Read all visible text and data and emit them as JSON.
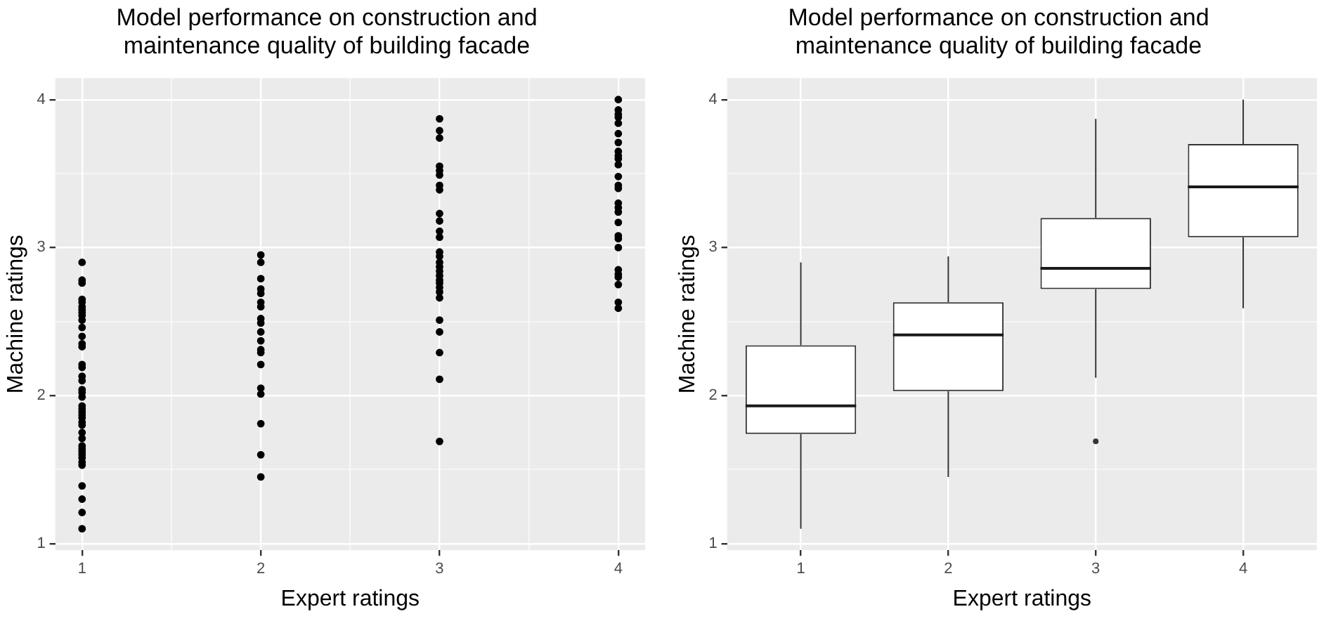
{
  "chart_data": [
    {
      "type": "scatter",
      "title": "Model performance on construction and maintenance quality of building facade",
      "xlabel": "Expert ratings",
      "ylabel": "Machine ratings",
      "xlim": [
        0.85,
        4.15
      ],
      "ylim": [
        0.955,
        4.145
      ],
      "xticks": [
        1,
        {
          "value": 1.5,
          "label": null
        },
        2,
        {
          "value": 2.5,
          "label": null
        },
        3,
        {
          "value": 3.5,
          "label": null
        },
        4
      ],
      "yticks": [
        1,
        {
          "value": 1.5,
          "label": null
        },
        2,
        {
          "value": 2.5,
          "label": null
        },
        3,
        {
          "value": 3.5,
          "label": null
        },
        4
      ],
      "grid": true,
      "marker": "circle",
      "series": [
        {
          "color": "#000000",
          "x": [
            1,
            1,
            1,
            1,
            1,
            1,
            1,
            1,
            1,
            1,
            1,
            1,
            1,
            1,
            1,
            1,
            1,
            1,
            1,
            1,
            1,
            1,
            1,
            1,
            1,
            1,
            1,
            1,
            1,
            1,
            1,
            1,
            1,
            1,
            1,
            1,
            1,
            1,
            1,
            1,
            1,
            2,
            2,
            2,
            2,
            2,
            2,
            2,
            2,
            2,
            2,
            2,
            2,
            2,
            2,
            2,
            2,
            2,
            2,
            2,
            3,
            3,
            3,
            3,
            3,
            3,
            3,
            3,
            3,
            3,
            3,
            3,
            3,
            3,
            3,
            3,
            3,
            3,
            3,
            3,
            3,
            3,
            3,
            3,
            3,
            3,
            3,
            3,
            4,
            4,
            4,
            4,
            4,
            4,
            4,
            4,
            4,
            4,
            4,
            4,
            4,
            4,
            4,
            4,
            4,
            4,
            4,
            4,
            4,
            4,
            4,
            4,
            4,
            4,
            4
          ],
          "values": [
            2.9,
            2.78,
            2.76,
            2.65,
            2.63,
            2.6,
            2.58,
            2.56,
            2.54,
            2.51,
            2.46,
            2.4,
            2.35,
            2.33,
            2.21,
            2.19,
            2.13,
            2.1,
            2.04,
            2.02,
            1.99,
            1.93,
            1.91,
            1.89,
            1.87,
            1.85,
            1.82,
            1.8,
            1.75,
            1.71,
            1.66,
            1.64,
            1.62,
            1.6,
            1.58,
            1.55,
            1.53,
            1.39,
            1.3,
            1.21,
            1.1,
            2.95,
            2.9,
            2.79,
            2.72,
            2.69,
            2.63,
            2.6,
            2.52,
            2.49,
            2.43,
            2.37,
            2.31,
            2.29,
            2.21,
            2.05,
            2.01,
            1.81,
            1.6,
            1.45,
            3.87,
            3.79,
            3.74,
            3.55,
            3.52,
            3.49,
            3.42,
            3.39,
            3.23,
            3.18,
            3.11,
            3.07,
            2.97,
            2.94,
            2.9,
            2.87,
            2.84,
            2.81,
            2.78,
            2.76,
            2.73,
            2.7,
            2.66,
            2.51,
            2.43,
            2.29,
            2.11,
            1.69,
            4.0,
            3.93,
            3.9,
            3.88,
            3.84,
            3.77,
            3.71,
            3.65,
            3.62,
            3.6,
            3.56,
            3.48,
            3.42,
            3.4,
            3.3,
            3.27,
            3.24,
            3.17,
            3.08,
            3.06,
            3.0,
            2.85,
            2.82,
            2.8,
            2.75,
            2.63,
            2.59
          ]
        }
      ]
    },
    {
      "type": "box",
      "title": "Model performance on construction and maintenance quality of building facade",
      "xlabel": "Expert ratings",
      "ylabel": "Machine ratings",
      "categories": [
        "1",
        "2",
        "3",
        "4"
      ],
      "ylim": [
        0.955,
        4.145
      ],
      "yticks": [
        1,
        {
          "value": 1.5,
          "label": null
        },
        2,
        {
          "value": 2.5,
          "label": null
        },
        3,
        {
          "value": 3.5,
          "label": null
        },
        4
      ],
      "grid": true,
      "boxes": [
        {
          "low": 1.1,
          "q1": 1.74,
          "median": 1.93,
          "q3": 2.34,
          "high": 2.9
        },
        {
          "low": 1.45,
          "q1": 2.03,
          "median": 2.41,
          "q3": 2.63,
          "high": 2.94
        },
        {
          "low": 2.12,
          "q1": 2.72,
          "median": 2.86,
          "q3": 3.2,
          "high": 3.87,
          "outliers": [
            1.69
          ]
        },
        {
          "low": 2.59,
          "q1": 3.07,
          "median": 3.41,
          "q3": 3.7,
          "high": 4.0
        }
      ]
    }
  ]
}
